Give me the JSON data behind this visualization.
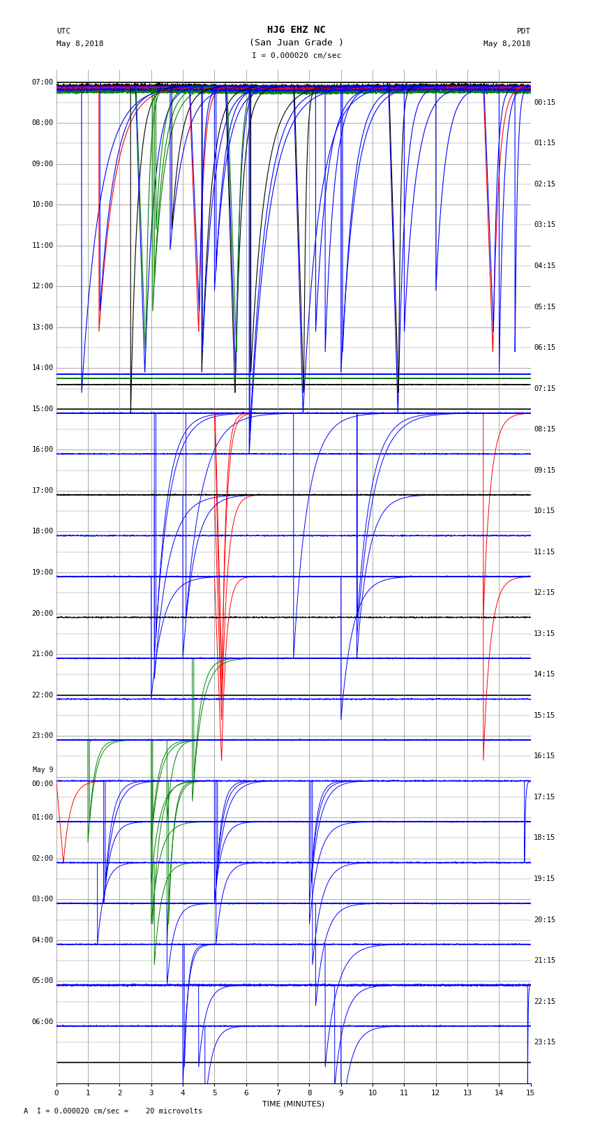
{
  "title_line1": "HJG EHZ NC",
  "title_line2": "(San Juan Grade )",
  "scale_label": "I = 0.000020 cm/sec",
  "footer_label": "A I = 0.000020 cm/sec =    20 microvolts",
  "utc_label": "UTC",
  "pdt_label": "PDT",
  "date_left": "May 8,2018",
  "date_right": "May 8,2018",
  "xlabel": "TIME (MINUTES)",
  "xlim": [
    0,
    15
  ],
  "xticks": [
    0,
    1,
    2,
    3,
    4,
    5,
    6,
    7,
    8,
    9,
    10,
    11,
    12,
    13,
    14,
    15
  ],
  "left_times": [
    "07:00",
    "08:00",
    "09:00",
    "10:00",
    "11:00",
    "12:00",
    "13:00",
    "14:00",
    "15:00",
    "16:00",
    "17:00",
    "18:00",
    "19:00",
    "20:00",
    "21:00",
    "22:00",
    "23:00",
    "May 9\n00:00",
    "01:00",
    "02:00",
    "03:00",
    "04:00",
    "05:00",
    "06:00"
  ],
  "right_times": [
    "00:15",
    "01:15",
    "02:15",
    "03:15",
    "04:15",
    "05:15",
    "06:15",
    "07:15",
    "08:15",
    "09:15",
    "10:15",
    "11:15",
    "12:15",
    "13:15",
    "14:15",
    "15:15",
    "16:15",
    "17:15",
    "18:15",
    "19:15",
    "20:15",
    "21:15",
    "22:15",
    "23:15"
  ],
  "num_rows": 24,
  "bg_color": "white",
  "grid_color": "#888888",
  "heavy_grid_rows": [
    7,
    14
  ],
  "title_fontsize": 10,
  "label_fontsize": 8,
  "tick_fontsize": 7.5
}
